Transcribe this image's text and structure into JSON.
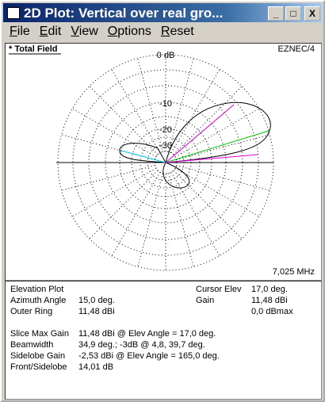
{
  "window": {
    "title": "2D Plot: Vertical over real gro..."
  },
  "menu": [
    "File",
    "Edit",
    "View",
    "Options",
    "Reset"
  ],
  "plot": {
    "label": "* Total Field",
    "brand": "EZNEC/4",
    "ring_labels": [
      "0 dB",
      "-10",
      "-20",
      "-30"
    ],
    "frequency": "7,025 MHz"
  },
  "info": {
    "heading": "Elevation Plot",
    "top": [
      {
        "label": "Azimuth Angle",
        "value": "15,0 deg."
      },
      {
        "label": "Outer Ring",
        "value": "11,48 dBi"
      }
    ],
    "cursor": [
      {
        "label": "Cursor Elev",
        "value": "17,0 deg."
      },
      {
        "label": "Gain",
        "value": "11,48 dBi"
      }
    ],
    "dbmax": "0,0 dBmax",
    "summary": [
      {
        "label": "Slice Max Gain",
        "value": "11,48 dBi @ Elev Angle = 17,0 deg."
      },
      {
        "label": "Beamwidth",
        "value": "34,9 deg.; -3dB @ 4,8, 39,7 deg."
      },
      {
        "label": "Sidelobe Gain",
        "value": "-2,53 dBi @ Elev Angle = 165,0 deg."
      },
      {
        "label": "Front/Sidelobe",
        "value": "14,01 dB"
      }
    ]
  }
}
